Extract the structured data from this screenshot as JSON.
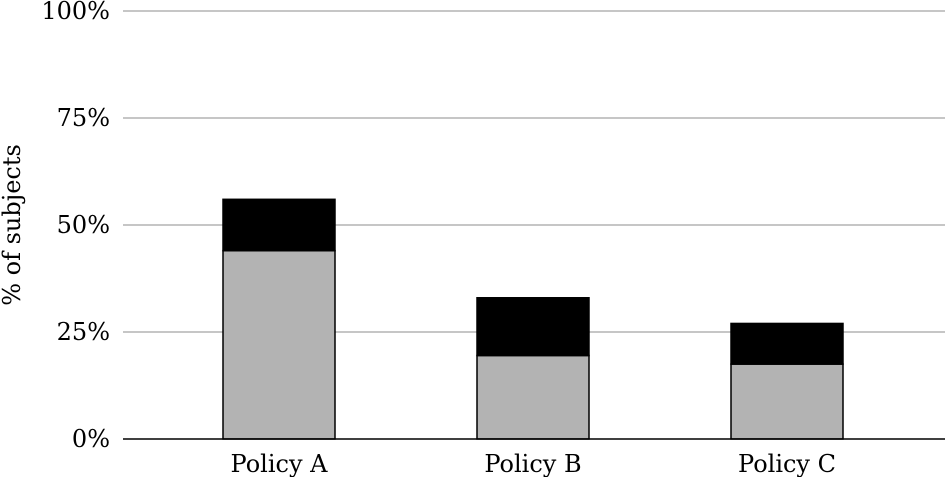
{
  "chart_data": {
    "type": "bar",
    "stacked": true,
    "categories": [
      "Policy A",
      "Policy B",
      "Policy C"
    ],
    "series": [
      {
        "values": [
          44,
          19.5,
          17.5
        ],
        "color": "#b3b3b3"
      },
      {
        "values": [
          12,
          13.5,
          9.5
        ],
        "color": "#000000"
      }
    ],
    "ylabel": "% of subjects",
    "ylim": [
      0,
      100
    ],
    "yticks": [
      0,
      25,
      50,
      75,
      100
    ],
    "ytick_labels": [
      "0%",
      "25%",
      "50%",
      "75%",
      "100%"
    ],
    "grid": true,
    "legend": "none"
  }
}
